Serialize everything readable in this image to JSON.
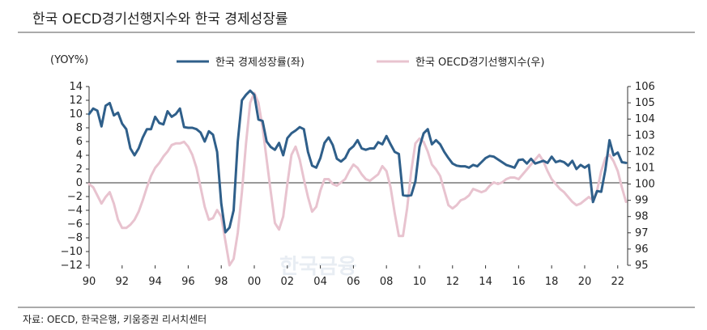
{
  "title": "한국 OECD경기선행지수와 한국 경제성장률",
  "source": "자료: OECD, 한국은행, 키움증권 리서치센터",
  "watermark": "한국금융",
  "chart_data": {
    "type": "line",
    "title": "한국 OECD경기선행지수와 한국 경제성장률",
    "y_unit_label": "(YOY%)",
    "x_tick_labels": [
      "90",
      "92",
      "94",
      "96",
      "98",
      "00",
      "02",
      "04",
      "06",
      "08",
      "10",
      "12",
      "14",
      "16",
      "18",
      "20",
      "22"
    ],
    "x_range": [
      1990,
      2022.6
    ],
    "y_left": {
      "range": [
        -12,
        14
      ],
      "ticks": [
        "14",
        "12",
        "10",
        "8",
        "6",
        "4",
        "2",
        "0",
        "−2",
        "−4",
        "−6",
        "−8",
        "−10",
        "−12"
      ]
    },
    "y_right": {
      "range": [
        95,
        106
      ],
      "ticks": [
        "106",
        "105",
        "104",
        "103",
        "102",
        "101",
        "100",
        "99",
        "98",
        "97",
        "96",
        "95"
      ]
    },
    "series": [
      {
        "name": "한국 경제성장률(좌)",
        "axis": "left",
        "color": "#2f5f8a",
        "points": [
          [
            1990.0,
            10.0
          ],
          [
            1990.25,
            10.8
          ],
          [
            1990.5,
            10.5
          ],
          [
            1990.75,
            8.2
          ],
          [
            1991.0,
            11.2
          ],
          [
            1991.25,
            11.6
          ],
          [
            1991.5,
            9.8
          ],
          [
            1991.75,
            10.2
          ],
          [
            1992.0,
            8.6
          ],
          [
            1992.25,
            7.8
          ],
          [
            1992.5,
            5.0
          ],
          [
            1992.75,
            4.0
          ],
          [
            1993.0,
            5.0
          ],
          [
            1993.25,
            6.6
          ],
          [
            1993.5,
            7.8
          ],
          [
            1993.75,
            7.8
          ],
          [
            1994.0,
            9.6
          ],
          [
            1994.25,
            8.7
          ],
          [
            1994.5,
            8.5
          ],
          [
            1994.75,
            10.4
          ],
          [
            1995.0,
            9.6
          ],
          [
            1995.25,
            10.0
          ],
          [
            1995.5,
            10.8
          ],
          [
            1995.75,
            8.1
          ],
          [
            1996.0,
            8.0
          ],
          [
            1996.25,
            8.0
          ],
          [
            1996.5,
            7.8
          ],
          [
            1996.75,
            7.3
          ],
          [
            1997.0,
            6.0
          ],
          [
            1997.25,
            7.5
          ],
          [
            1997.5,
            7.0
          ],
          [
            1997.75,
            4.5
          ],
          [
            1998.0,
            -3.0
          ],
          [
            1998.25,
            -7.2
          ],
          [
            1998.5,
            -6.5
          ],
          [
            1998.75,
            -4.0
          ],
          [
            1999.0,
            6.0
          ],
          [
            1999.25,
            12.0
          ],
          [
            1999.5,
            12.8
          ],
          [
            1999.75,
            13.4
          ],
          [
            2000.0,
            12.8
          ],
          [
            2000.25,
            9.2
          ],
          [
            2000.5,
            9.0
          ],
          [
            2000.75,
            6.0
          ],
          [
            2001.0,
            5.2
          ],
          [
            2001.25,
            4.8
          ],
          [
            2001.5,
            5.8
          ],
          [
            2001.75,
            4.0
          ],
          [
            2002.0,
            6.5
          ],
          [
            2002.25,
            7.2
          ],
          [
            2002.5,
            7.6
          ],
          [
            2002.75,
            8.1
          ],
          [
            2003.0,
            7.8
          ],
          [
            2003.25,
            4.5
          ],
          [
            2003.5,
            2.5
          ],
          [
            2003.75,
            2.2
          ],
          [
            2004.0,
            3.6
          ],
          [
            2004.25,
            5.8
          ],
          [
            2004.5,
            6.6
          ],
          [
            2004.75,
            5.5
          ],
          [
            2005.0,
            3.5
          ],
          [
            2005.25,
            3.1
          ],
          [
            2005.5,
            3.6
          ],
          [
            2005.75,
            4.8
          ],
          [
            2006.0,
            5.3
          ],
          [
            2006.25,
            6.2
          ],
          [
            2006.5,
            5.0
          ],
          [
            2006.75,
            4.8
          ],
          [
            2007.0,
            5.0
          ],
          [
            2007.25,
            5.0
          ],
          [
            2007.5,
            5.9
          ],
          [
            2007.75,
            5.6
          ],
          [
            2008.0,
            6.8
          ],
          [
            2008.25,
            5.6
          ],
          [
            2008.5,
            4.5
          ],
          [
            2008.75,
            4.2
          ],
          [
            2009.0,
            -1.8
          ],
          [
            2009.25,
            -1.9
          ],
          [
            2009.5,
            -1.8
          ],
          [
            2009.75,
            0.2
          ],
          [
            2010.0,
            5.2
          ],
          [
            2010.25,
            7.2
          ],
          [
            2010.5,
            7.8
          ],
          [
            2010.75,
            5.6
          ],
          [
            2011.0,
            6.2
          ],
          [
            2011.25,
            5.6
          ],
          [
            2011.5,
            4.5
          ],
          [
            2011.75,
            3.6
          ],
          [
            2012.0,
            2.8
          ],
          [
            2012.25,
            2.5
          ],
          [
            2012.5,
            2.4
          ],
          [
            2012.75,
            2.4
          ],
          [
            2013.0,
            2.2
          ],
          [
            2013.25,
            2.6
          ],
          [
            2013.5,
            2.4
          ],
          [
            2013.75,
            3.0
          ],
          [
            2014.0,
            3.6
          ],
          [
            2014.25,
            3.9
          ],
          [
            2014.5,
            3.8
          ],
          [
            2014.75,
            3.4
          ],
          [
            2015.0,
            3.0
          ],
          [
            2015.25,
            2.6
          ],
          [
            2015.5,
            2.4
          ],
          [
            2015.75,
            2.2
          ],
          [
            2016.0,
            3.3
          ],
          [
            2016.25,
            3.4
          ],
          [
            2016.5,
            2.8
          ],
          [
            2016.75,
            3.5
          ],
          [
            2017.0,
            2.8
          ],
          [
            2017.25,
            3.0
          ],
          [
            2017.5,
            3.2
          ],
          [
            2017.75,
            2.9
          ],
          [
            2018.0,
            3.8
          ],
          [
            2018.25,
            3.0
          ],
          [
            2018.5,
            3.2
          ],
          [
            2018.75,
            3.0
          ],
          [
            2019.0,
            2.5
          ],
          [
            2019.25,
            3.2
          ],
          [
            2019.5,
            2.0
          ],
          [
            2019.75,
            2.6
          ],
          [
            2020.0,
            2.2
          ],
          [
            2020.25,
            2.6
          ],
          [
            2020.5,
            -2.8
          ],
          [
            2020.75,
            -1.2
          ],
          [
            2021.0,
            -1.3
          ],
          [
            2021.25,
            1.9
          ],
          [
            2021.5,
            6.2
          ],
          [
            2021.75,
            4.0
          ],
          [
            2022.0,
            4.4
          ],
          [
            2022.25,
            3.0
          ],
          [
            2022.5,
            2.9
          ]
        ]
      },
      {
        "name": "한국 OECD경기선행지수(우)",
        "axis": "right",
        "color": "#e8c3cf",
        "points": [
          [
            1990.0,
            100.0
          ],
          [
            1990.25,
            99.8
          ],
          [
            1990.5,
            99.3
          ],
          [
            1990.75,
            98.8
          ],
          [
            1991.0,
            99.2
          ],
          [
            1991.25,
            99.5
          ],
          [
            1991.5,
            98.8
          ],
          [
            1991.75,
            97.8
          ],
          [
            1992.0,
            97.3
          ],
          [
            1992.25,
            97.3
          ],
          [
            1992.5,
            97.5
          ],
          [
            1992.75,
            97.8
          ],
          [
            1993.0,
            98.3
          ],
          [
            1993.25,
            99.0
          ],
          [
            1993.5,
            99.8
          ],
          [
            1993.75,
            100.5
          ],
          [
            1994.0,
            101.0
          ],
          [
            1994.25,
            101.3
          ],
          [
            1994.5,
            101.7
          ],
          [
            1994.75,
            102.0
          ],
          [
            1995.0,
            102.4
          ],
          [
            1995.25,
            102.5
          ],
          [
            1995.5,
            102.5
          ],
          [
            1995.75,
            102.6
          ],
          [
            1996.0,
            102.3
          ],
          [
            1996.25,
            101.8
          ],
          [
            1996.5,
            101.0
          ],
          [
            1996.75,
            99.8
          ],
          [
            1997.0,
            98.6
          ],
          [
            1997.25,
            97.8
          ],
          [
            1997.5,
            97.9
          ],
          [
            1997.75,
            98.4
          ],
          [
            1998.0,
            98.0
          ],
          [
            1998.25,
            96.5
          ],
          [
            1998.5,
            95.0
          ],
          [
            1998.75,
            95.4
          ],
          [
            1999.0,
            97.0
          ],
          [
            1999.25,
            99.5
          ],
          [
            1999.5,
            102.5
          ],
          [
            1999.75,
            105.0
          ],
          [
            2000.0,
            105.6
          ],
          [
            2000.25,
            105.0
          ],
          [
            2000.5,
            103.5
          ],
          [
            2000.75,
            101.5
          ],
          [
            2001.0,
            99.5
          ],
          [
            2001.25,
            97.6
          ],
          [
            2001.5,
            97.2
          ],
          [
            2001.75,
            98.0
          ],
          [
            2002.0,
            100.0
          ],
          [
            2002.25,
            101.8
          ],
          [
            2002.5,
            102.3
          ],
          [
            2002.75,
            101.5
          ],
          [
            2003.0,
            100.3
          ],
          [
            2003.25,
            99.2
          ],
          [
            2003.5,
            98.3
          ],
          [
            2003.75,
            98.6
          ],
          [
            2004.0,
            99.6
          ],
          [
            2004.25,
            100.3
          ],
          [
            2004.5,
            100.3
          ],
          [
            2004.75,
            100.0
          ],
          [
            2005.0,
            99.9
          ],
          [
            2005.25,
            100.1
          ],
          [
            2005.5,
            100.3
          ],
          [
            2005.75,
            100.8
          ],
          [
            2006.0,
            101.2
          ],
          [
            2006.25,
            101.0
          ],
          [
            2006.5,
            100.6
          ],
          [
            2006.75,
            100.3
          ],
          [
            2007.0,
            100.2
          ],
          [
            2007.25,
            100.4
          ],
          [
            2007.5,
            100.6
          ],
          [
            2007.75,
            101.1
          ],
          [
            2008.0,
            100.8
          ],
          [
            2008.25,
            99.8
          ],
          [
            2008.5,
            98.2
          ],
          [
            2008.75,
            96.8
          ],
          [
            2009.0,
            96.8
          ],
          [
            2009.25,
            98.5
          ],
          [
            2009.5,
            100.8
          ],
          [
            2009.75,
            102.5
          ],
          [
            2010.0,
            102.8
          ],
          [
            2010.25,
            102.6
          ],
          [
            2010.5,
            102.0
          ],
          [
            2010.75,
            101.2
          ],
          [
            2011.0,
            100.9
          ],
          [
            2011.25,
            100.5
          ],
          [
            2011.5,
            99.6
          ],
          [
            2011.75,
            98.7
          ],
          [
            2012.0,
            98.5
          ],
          [
            2012.25,
            98.7
          ],
          [
            2012.5,
            99.0
          ],
          [
            2012.75,
            99.1
          ],
          [
            2013.0,
            99.3
          ],
          [
            2013.25,
            99.7
          ],
          [
            2013.5,
            99.6
          ],
          [
            2013.75,
            99.5
          ],
          [
            2014.0,
            99.6
          ],
          [
            2014.25,
            99.9
          ],
          [
            2014.5,
            100.1
          ],
          [
            2014.75,
            100.0
          ],
          [
            2015.0,
            100.1
          ],
          [
            2015.25,
            100.3
          ],
          [
            2015.5,
            100.4
          ],
          [
            2015.75,
            100.4
          ],
          [
            2016.0,
            100.3
          ],
          [
            2016.25,
            100.6
          ],
          [
            2016.5,
            100.9
          ],
          [
            2016.75,
            101.2
          ],
          [
            2017.0,
            101.5
          ],
          [
            2017.25,
            101.8
          ],
          [
            2017.5,
            101.4
          ],
          [
            2017.75,
            100.8
          ],
          [
            2018.0,
            100.3
          ],
          [
            2018.25,
            100.0
          ],
          [
            2018.5,
            99.7
          ],
          [
            2018.75,
            99.5
          ],
          [
            2019.0,
            99.2
          ],
          [
            2019.25,
            98.9
          ],
          [
            2019.5,
            98.7
          ],
          [
            2019.75,
            98.8
          ],
          [
            2020.0,
            99.0
          ],
          [
            2020.25,
            99.2
          ],
          [
            2020.5,
            99.0
          ],
          [
            2020.75,
            99.6
          ],
          [
            2021.0,
            100.8
          ],
          [
            2021.25,
            101.6
          ],
          [
            2021.5,
            101.8
          ],
          [
            2021.75,
            101.4
          ],
          [
            2022.0,
            100.8
          ],
          [
            2022.25,
            99.8
          ],
          [
            2022.5,
            98.9
          ]
        ]
      }
    ],
    "legend_placement": "top"
  }
}
